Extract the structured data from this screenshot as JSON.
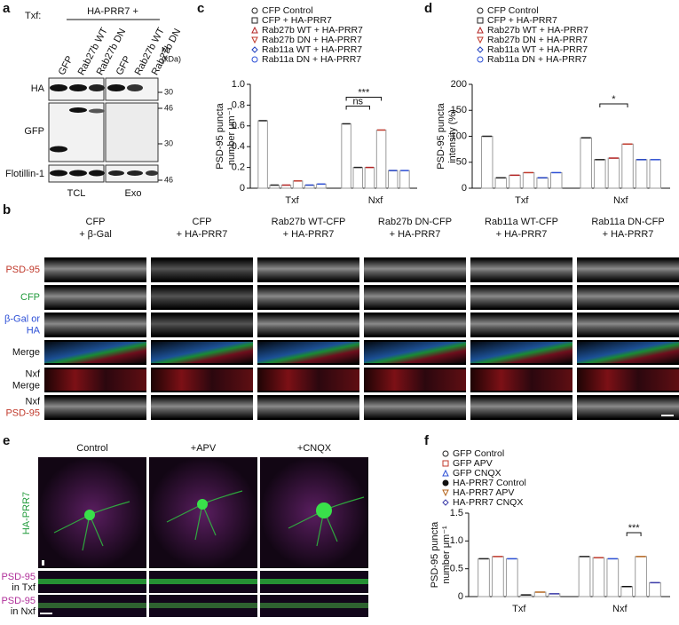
{
  "panel_labels": [
    "a",
    "b",
    "c",
    "d",
    "e",
    "f"
  ],
  "blot": {
    "txf_label": "Txf:",
    "construct": "HA-PRR7 +",
    "lanes": [
      "GFP",
      "Rab27b WT",
      "Rab27b DN",
      "GFP",
      "Rab27b WT",
      "Rab27b DN"
    ],
    "mr_label": [
      "Mr",
      "(kDa)"
    ],
    "rows": [
      "HA",
      "GFP",
      "Flotillin-1"
    ],
    "markers": [
      "30",
      "46",
      "30",
      "46"
    ],
    "fractions": [
      "TCL",
      "Exo"
    ]
  },
  "micrograph_b": {
    "columns": [
      [
        "CFP",
        "+ β-Gal"
      ],
      [
        "CFP",
        "+ HA-PRR7"
      ],
      [
        "Rab27b WT-CFP",
        "+ HA-PRR7"
      ],
      [
        "Rab27b DN-CFP",
        "+ HA-PRR7"
      ],
      [
        "Rab11a WT-CFP",
        "+ HA-PRR7"
      ],
      [
        "Rab11a DN-CFP",
        "+ HA-PRR7"
      ]
    ],
    "rows": [
      [
        "PSD-95"
      ],
      [
        "CFP"
      ],
      [
        "β-Gal or",
        "HA"
      ],
      [
        "Merge"
      ],
      [
        "Nxf",
        "Merge"
      ],
      [
        "Nxf",
        "PSD-95"
      ]
    ]
  },
  "micrograph_e": {
    "columns": [
      "Control",
      "+APV",
      "+CNQX"
    ],
    "side_label": "HA-PRR7",
    "rows": [
      [
        "PSD-95",
        "in Txf"
      ],
      [
        "PSD-95",
        "in Nxf"
      ]
    ]
  },
  "chart_data": [
    {
      "type": "bar",
      "y_label": [
        "PSD-95 puncta",
        "number μm⁻¹"
      ],
      "categories": [
        "Txf",
        "Nxf"
      ],
      "ylim": [
        0,
        1
      ],
      "yticks": [
        0,
        0.2,
        0.4,
        0.6,
        0.8,
        {
          "value": 1,
          "label": "1.0"
        }
      ],
      "series": [
        {
          "name": "CFP Control",
          "color": "#222222",
          "marker": "circle",
          "values": [
            0.65,
            0.62
          ]
        },
        {
          "name": "CFP + HA-PRR7",
          "color": "#222222",
          "marker": "square",
          "values": [
            0.03,
            0.2
          ]
        },
        {
          "name": "Rab27b WT + HA-PRR7",
          "color": "#b22222",
          "marker": "triangle",
          "values": [
            0.03,
            0.2
          ]
        },
        {
          "name": "Rab27b DN + HA-PRR7",
          "color": "#c0392b",
          "marker": "triangle-down",
          "values": [
            0.07,
            0.56
          ]
        },
        {
          "name": "Rab11a WT + HA-PRR7",
          "color": "#1f3fbf",
          "marker": "diamond",
          "values": [
            0.03,
            0.17
          ]
        },
        {
          "name": "Rab11a DN + HA-PRR7",
          "color": "#2c4fd6",
          "marker": "circle",
          "values": [
            0.04,
            0.17
          ]
        }
      ],
      "annotations": [
        {
          "text": "ns",
          "category": 1,
          "series": [
            0,
            2
          ]
        },
        {
          "text": "***",
          "category": 1,
          "series": [
            0,
            3
          ]
        }
      ]
    },
    {
      "type": "bar",
      "y_label": [
        "PSD-95 puncta",
        "intensity (%)"
      ],
      "categories": [
        "Txf",
        "Nxf"
      ],
      "ylim": [
        0,
        200
      ],
      "yticks": [
        0,
        50,
        100,
        150,
        200
      ],
      "series": [
        {
          "name": "CFP Control",
          "color": "#222222",
          "marker": "circle",
          "values": [
            100,
            97
          ]
        },
        {
          "name": "CFP + HA-PRR7",
          "color": "#222222",
          "marker": "square",
          "values": [
            20,
            55
          ]
        },
        {
          "name": "Rab27b WT + HA-PRR7",
          "color": "#b22222",
          "marker": "triangle",
          "values": [
            25,
            58
          ]
        },
        {
          "name": "Rab27b DN + HA-PRR7",
          "color": "#c0392b",
          "marker": "triangle-down",
          "values": [
            30,
            85
          ]
        },
        {
          "name": "Rab11a WT + HA-PRR7",
          "color": "#1f3fbf",
          "marker": "diamond",
          "values": [
            20,
            55
          ]
        },
        {
          "name": "Rab11a DN + HA-PRR7",
          "color": "#2c4fd6",
          "marker": "circle",
          "values": [
            30,
            55
          ]
        }
      ],
      "annotations": [
        {
          "text": "*",
          "category": 1,
          "series": [
            1,
            3
          ]
        }
      ]
    },
    {
      "type": "bar",
      "y_label": [
        "PSD-95 puncta",
        "number μm⁻¹"
      ],
      "categories": [
        "Txf",
        "Nxf"
      ],
      "ylim": [
        0,
        1.5
      ],
      "yticks": [
        0,
        0.5,
        {
          "value": 1,
          "label": "1.0"
        },
        1.5
      ],
      "series": [
        {
          "name": "GFP Control",
          "color": "#222222",
          "marker": "circle",
          "values": [
            0.68,
            0.72
          ]
        },
        {
          "name": "GFP APV",
          "color": "#c0392b",
          "marker": "square",
          "values": [
            0.72,
            0.7
          ]
        },
        {
          "name": "GFP CNQX",
          "color": "#2c4fd6",
          "marker": "triangle",
          "values": [
            0.68,
            0.68
          ]
        },
        {
          "name": "HA-PRR7 Control",
          "color": "#111111",
          "marker": "circle-filled",
          "values": [
            0.03,
            0.18
          ]
        },
        {
          "name": "HA-PRR7 APV",
          "color": "#b5651d",
          "marker": "triangle-down",
          "values": [
            0.08,
            0.72
          ]
        },
        {
          "name": "HA-PRR7 CNQX",
          "color": "#3a3aa8",
          "marker": "diamond",
          "values": [
            0.05,
            0.25
          ]
        }
      ],
      "annotations": [
        {
          "text": "***",
          "category": 1,
          "series": [
            3,
            4
          ]
        }
      ]
    }
  ]
}
